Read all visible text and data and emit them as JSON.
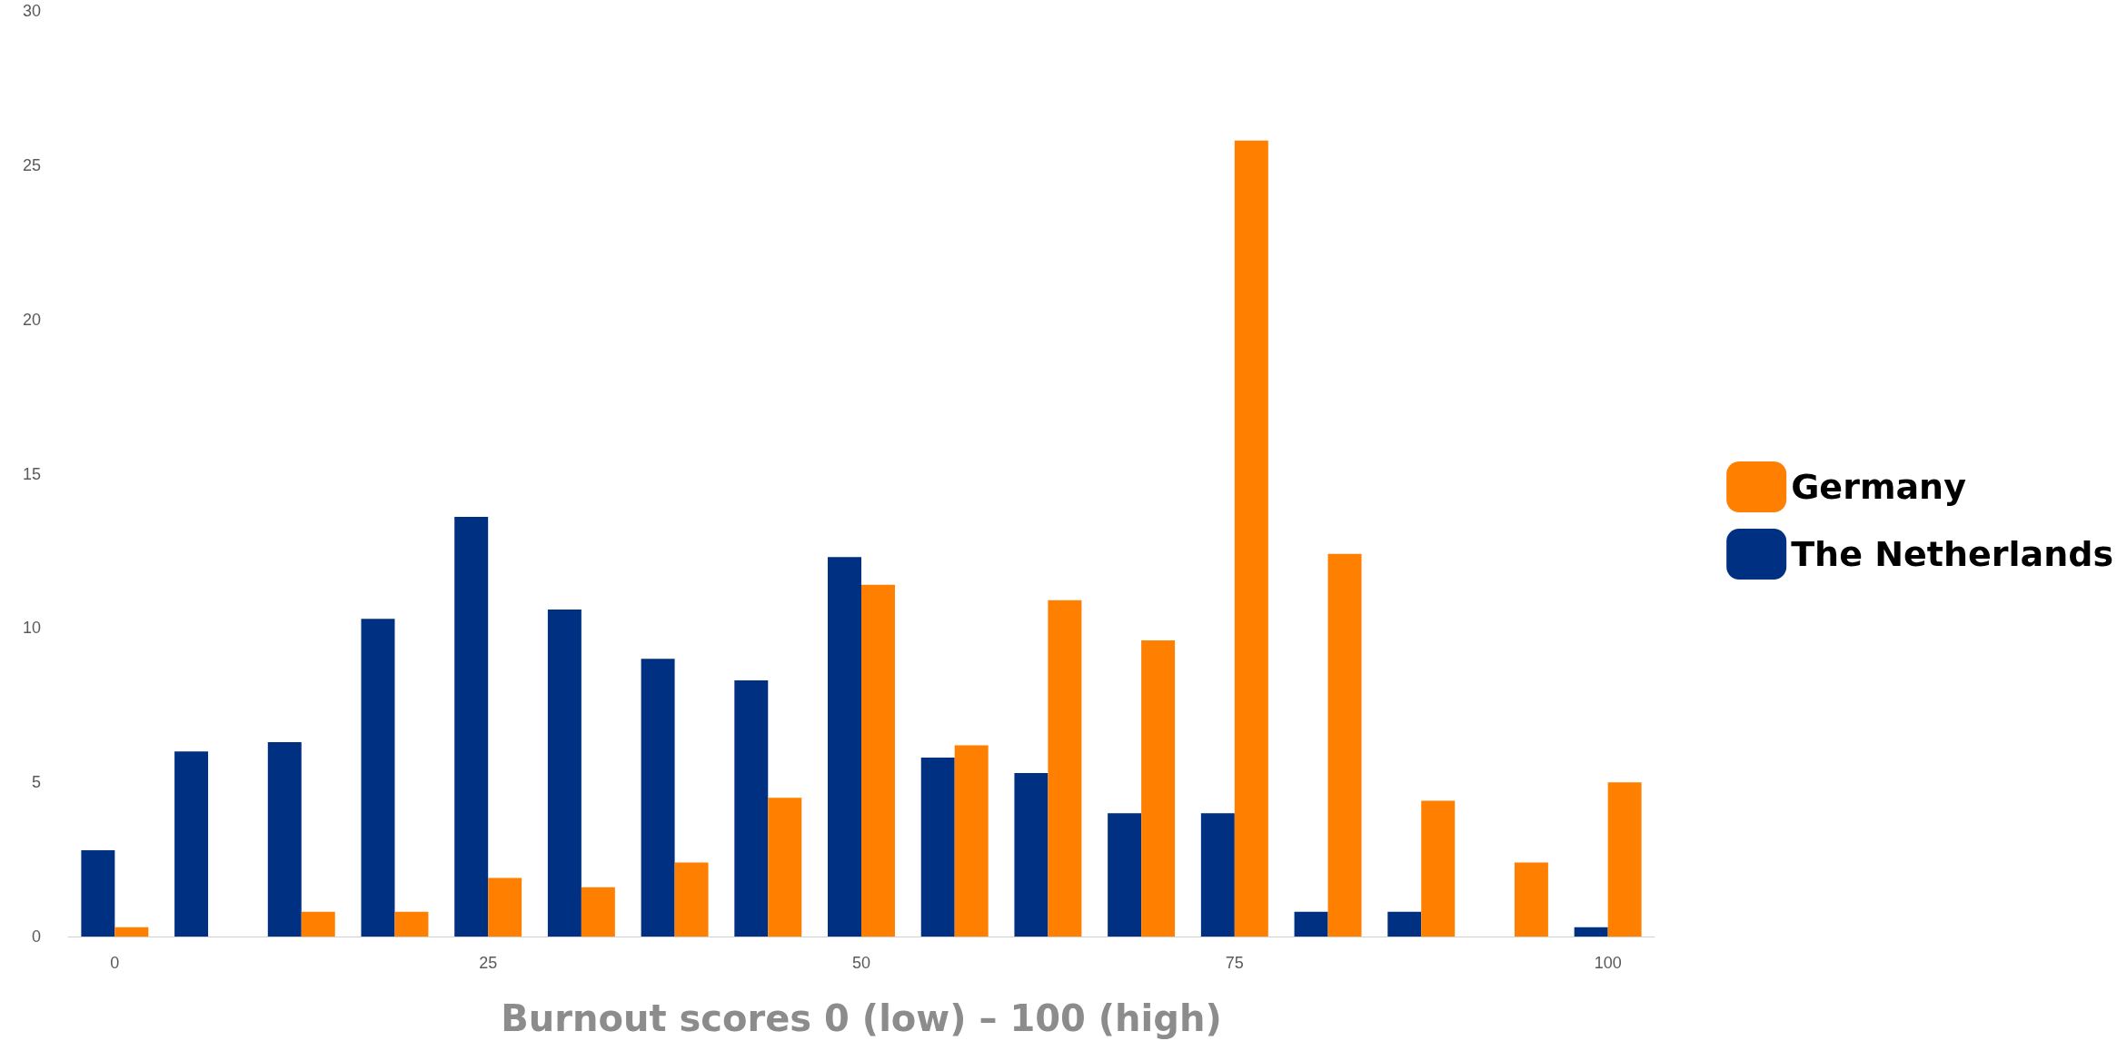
{
  "chart_data": {
    "type": "bar",
    "xlabel": "Burnout scores 0 (low) – 100 (high)",
    "categories": [
      "0",
      null,
      null,
      null,
      "25",
      null,
      null,
      null,
      "50",
      null,
      null,
      null,
      "75",
      null,
      null,
      null,
      "100"
    ],
    "series": [
      {
        "name": "The Netherlands",
        "color": "#003082",
        "values": [
          2.8,
          6.0,
          6.3,
          10.3,
          13.6,
          10.6,
          9.0,
          8.3,
          12.3,
          5.8,
          5.3,
          4.0,
          4.0,
          0.8,
          0.8,
          0,
          0.3
        ]
      },
      {
        "name": "Germany",
        "color": "#ff7f00",
        "values": [
          0.3,
          0,
          0.8,
          0.8,
          1.9,
          1.6,
          2.4,
          4.5,
          11.4,
          6.2,
          10.9,
          9.6,
          25.8,
          12.4,
          4.4,
          2.4,
          5.0
        ]
      }
    ],
    "ylim": [
      0,
      30
    ],
    "yticks": [
      0,
      5,
      10,
      15,
      20,
      25,
      30
    ],
    "grid": false,
    "legend": "right"
  }
}
